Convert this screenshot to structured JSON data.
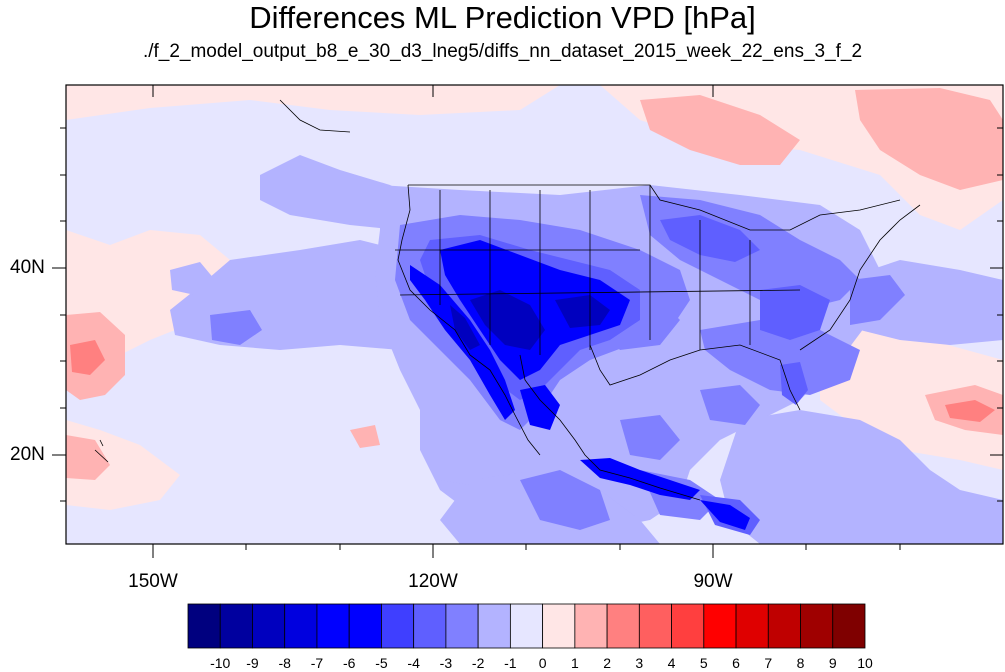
{
  "title": "Differences ML Prediction VPD [hPa]",
  "subtitle": "./f_2_model_output_b8_e_30_d3_lneg5/diffs_nn_dataset_2015_week_22_ens_3_f_2",
  "lat_labels": [
    "40N",
    "20N"
  ],
  "lon_labels": [
    "150W",
    "120W",
    "90W"
  ],
  "colorbar": {
    "colors": [
      "#00007f",
      "#00009f",
      "#0000bf",
      "#0000df",
      "#0000ff",
      "#0000ff",
      "#3f3fff",
      "#5f5fff",
      "#8080ff",
      "#b3b3ff",
      "#e6e6ff",
      "#ffe6e6",
      "#ffb3b3",
      "#ff8080",
      "#ff5f5f",
      "#ff3f3f",
      "#ff0000",
      "#df0000",
      "#bf0000",
      "#9f0000",
      "#7f0000"
    ],
    "labels": [
      "-10",
      "-9",
      "-8",
      "-7",
      "-6",
      "-5",
      "-4",
      "-3",
      "-2",
      "-1",
      "0",
      "1",
      "2",
      "3",
      "4",
      "5",
      "6",
      "7",
      "8",
      "9",
      "10"
    ]
  },
  "palette": {
    "background": "#e6e6ff",
    "light_red": "#ffe6e6",
    "pink": "#ffb3b3",
    "red": "#ff8080",
    "light_blue": "#b3b3ff",
    "mid_blue": "#8080ff",
    "blue": "#5f5fff",
    "strong_blue": "#3f3fff",
    "deep_blue": "#0000ff",
    "dark_blue": "#0000bf"
  }
}
